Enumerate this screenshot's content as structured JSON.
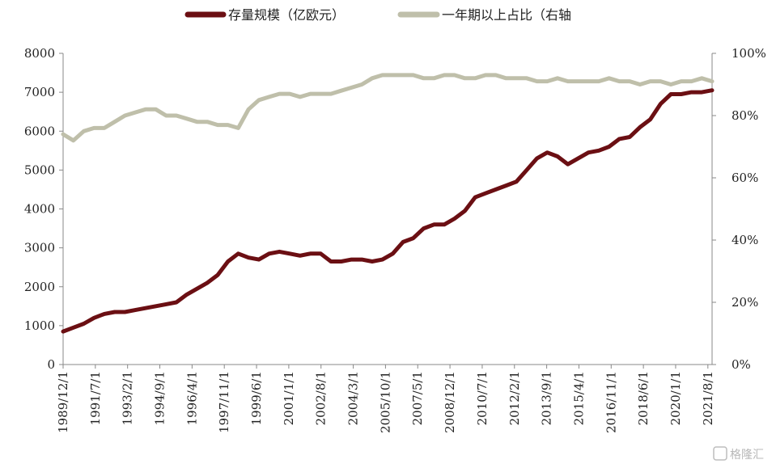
{
  "chart_data": {
    "type": "line",
    "title": "",
    "legend_position": "top",
    "series": [
      {
        "name": "存量规模（亿欧元）",
        "axis": "left",
        "color": "#6b0f13",
        "values": [
          850,
          950,
          1050,
          1200,
          1300,
          1350,
          1350,
          1400,
          1450,
          1500,
          1550,
          1600,
          1800,
          1950,
          2100,
          2300,
          2650,
          2850,
          2750,
          2700,
          2850,
          2900,
          2850,
          2800,
          2850,
          2850,
          2650,
          2650,
          2700,
          2700,
          2650,
          2700,
          2850,
          3150,
          3250,
          3500,
          3600,
          3600,
          3750,
          3950,
          4300,
          4400,
          4500,
          4600,
          4700,
          5000,
          5300,
          5450,
          5350,
          5150,
          5300,
          5450,
          5500,
          5600,
          5800,
          5850,
          6100,
          6300,
          6700,
          6950,
          6950,
          7000,
          7000,
          7050
        ]
      },
      {
        "name": "一年期以上占比（右轴",
        "axis": "right",
        "color": "#bfbfaa",
        "values": [
          74,
          72,
          75,
          76,
          76,
          78,
          80,
          81,
          82,
          82,
          80,
          80,
          79,
          78,
          78,
          77,
          77,
          76,
          82,
          85,
          86,
          87,
          87,
          86,
          87,
          87,
          87,
          88,
          89,
          90,
          92,
          93,
          93,
          93,
          93,
          92,
          92,
          93,
          93,
          92,
          92,
          93,
          93,
          92,
          92,
          92,
          91,
          91,
          92,
          91,
          91,
          91,
          91,
          92,
          91,
          91,
          90,
          91,
          91,
          90,
          91,
          91,
          92,
          91
        ]
      }
    ],
    "x_start": "1989/12/1",
    "x_end": "2022/3/1",
    "x_tick_labels": [
      "1989/12/1",
      "1991/7/1",
      "1993/2/1",
      "1994/9/1",
      "1996/4/1",
      "1997/11/1",
      "1999/6/1",
      "2001/1/1",
      "2002/8/1",
      "2004/3/1",
      "2005/10/1",
      "2007/5/1",
      "2008/12/1",
      "2010/7/1",
      "2012/2/1",
      "2013/9/1",
      "2015/4/1",
      "2016/11/1",
      "2018/6/1",
      "2020/1/1",
      "2021/8/1"
    ],
    "y_left": {
      "min": 0,
      "max": 8000,
      "ticks": [
        "0",
        "1000",
        "2000",
        "3000",
        "4000",
        "5000",
        "6000",
        "7000",
        "8000"
      ]
    },
    "y_right": {
      "min": 0,
      "max": 100,
      "ticks": [
        "0%",
        "20%",
        "40%",
        "60%",
        "80%",
        "100%"
      ]
    },
    "grid": false
  },
  "watermark": "格隆汇"
}
